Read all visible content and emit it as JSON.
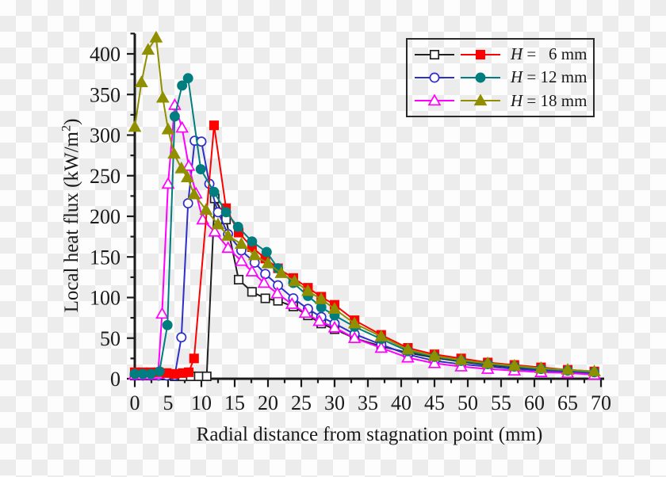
{
  "chart_data": {
    "type": "line",
    "title": "",
    "xlabel": "Radial distance from stagnation point (mm)",
    "ylabel": "Local heat flux (kW/m²)",
    "ylabel_parts": {
      "pre": "Local heat flux (kW/m",
      "sup": "2",
      "post": ")"
    },
    "xlim": [
      0,
      70
    ],
    "ylim": [
      0,
      425
    ],
    "x_major_ticks": [
      0,
      5,
      10,
      15,
      20,
      25,
      30,
      35,
      40,
      45,
      50,
      55,
      60,
      65,
      70
    ],
    "y_major_ticks": [
      0,
      50,
      100,
      150,
      200,
      250,
      300,
      350,
      400
    ],
    "x_minor_ticks": [
      2.5,
      7.5,
      12.5,
      17.5,
      22.5,
      27.5,
      32.5,
      37.5,
      42.5,
      47.5,
      52.5,
      57.5,
      62.5,
      67.5
    ],
    "y_minor_ticks": [
      25,
      75,
      125,
      175,
      225,
      275,
      325,
      375,
      425
    ],
    "grid": false,
    "legend_position": "top-right",
    "legend_rows": [
      {
        "h": "H",
        "rest": " =   6 mm"
      },
      {
        "h": "H",
        "rest": " = 12 mm"
      },
      {
        "h": "H",
        "rest": " = 18 mm"
      }
    ],
    "series": [
      {
        "name": "H6_open",
        "legend": "H = 6 mm (open)",
        "color": "#1f1f1f",
        "marker": "square",
        "fill": "open",
        "points": [
          [
            0,
            4
          ],
          [
            1.2,
            4
          ],
          [
            2.4,
            4
          ],
          [
            3.6,
            4
          ],
          [
            4.8,
            4
          ],
          [
            6,
            3
          ],
          [
            7.2,
            3
          ],
          [
            8.4,
            3
          ],
          [
            9.6,
            3
          ],
          [
            10.8,
            3
          ],
          [
            12,
            222
          ],
          [
            13.7,
            196
          ],
          [
            15.6,
            122
          ],
          [
            17.6,
            107
          ],
          [
            19.6,
            99
          ],
          [
            21.5,
            96
          ],
          [
            23.8,
            89
          ],
          [
            26,
            78
          ],
          [
            28,
            68
          ],
          [
            30,
            61
          ],
          [
            33,
            50
          ],
          [
            37,
            40
          ],
          [
            41,
            32
          ],
          [
            45,
            26
          ],
          [
            49,
            21
          ],
          [
            53,
            17
          ],
          [
            57,
            14
          ],
          [
            61,
            11
          ],
          [
            65,
            9
          ],
          [
            69,
            8
          ]
        ]
      },
      {
        "name": "H6_filled",
        "legend": "H = 6 mm (filled)",
        "color": "#fd0000",
        "marker": "square",
        "fill": "solid",
        "points": [
          [
            0,
            8
          ],
          [
            1.2,
            8
          ],
          [
            2.4,
            8
          ],
          [
            3.6,
            8
          ],
          [
            4.8,
            7
          ],
          [
            6,
            6
          ],
          [
            7.2,
            7
          ],
          [
            8.1,
            8
          ],
          [
            8.9,
            25
          ],
          [
            11.9,
            312
          ],
          [
            13.7,
            210
          ],
          [
            15.6,
            180
          ],
          [
            17.6,
            162
          ],
          [
            19.6,
            148
          ],
          [
            21.5,
            136
          ],
          [
            23.8,
            124
          ],
          [
            26,
            112
          ],
          [
            28,
            101
          ],
          [
            30,
            91
          ],
          [
            33,
            72
          ],
          [
            37,
            54
          ],
          [
            41,
            38
          ],
          [
            45,
            30
          ],
          [
            49,
            25
          ],
          [
            53,
            20
          ],
          [
            57,
            17
          ],
          [
            61,
            14
          ],
          [
            65,
            11
          ],
          [
            69,
            9
          ]
        ]
      },
      {
        "name": "H12_open",
        "legend": "H = 12 mm (open)",
        "color": "#2e2ec8",
        "marker": "circle",
        "fill": "open",
        "points": [
          [
            0,
            4
          ],
          [
            1.2,
            4
          ],
          [
            2.4,
            4
          ],
          [
            3.6,
            4
          ],
          [
            4.8,
            4
          ],
          [
            6,
            4
          ],
          [
            7,
            51
          ],
          [
            8,
            216
          ],
          [
            9,
            293
          ],
          [
            10,
            292
          ],
          [
            11.2,
            240
          ],
          [
            12.5,
            205
          ],
          [
            14,
            178
          ],
          [
            16,
            158
          ],
          [
            18,
            143
          ],
          [
            19.6,
            129
          ],
          [
            21.5,
            115
          ],
          [
            23.8,
            99
          ],
          [
            26,
            86
          ],
          [
            28,
            76
          ],
          [
            30,
            68
          ],
          [
            33,
            55
          ],
          [
            37,
            42
          ],
          [
            41,
            30
          ],
          [
            45,
            22
          ],
          [
            49,
            18
          ],
          [
            53,
            15
          ],
          [
            57,
            12
          ],
          [
            61,
            10
          ],
          [
            65,
            8
          ],
          [
            69,
            6
          ]
        ]
      },
      {
        "name": "H12_filled",
        "legend": "H = 12 mm (filled)",
        "color": "#007d7e",
        "marker": "circle",
        "fill": "solid",
        "points": [
          [
            0,
            6
          ],
          [
            1.2,
            6
          ],
          [
            2.4,
            6
          ],
          [
            3.7,
            9
          ],
          [
            4.9,
            66
          ],
          [
            6,
            323
          ],
          [
            7.1,
            361
          ],
          [
            8,
            370
          ],
          [
            9.9,
            258
          ],
          [
            11.9,
            230
          ],
          [
            13.7,
            205
          ],
          [
            15.5,
            187
          ],
          [
            17.6,
            169
          ],
          [
            19.8,
            156
          ],
          [
            21.5,
            136
          ],
          [
            23.8,
            118
          ],
          [
            26,
            102
          ],
          [
            28,
            88
          ],
          [
            30,
            78
          ],
          [
            33,
            64
          ],
          [
            37,
            49
          ],
          [
            41,
            34
          ],
          [
            45,
            27
          ],
          [
            49,
            22
          ],
          [
            53,
            18
          ],
          [
            57,
            15
          ],
          [
            61,
            12
          ],
          [
            65,
            10
          ],
          [
            69,
            8
          ]
        ]
      },
      {
        "name": "H18_open",
        "legend": "H = 18 mm (open)",
        "color": "#ff00ff",
        "marker": "triangle",
        "fill": "open",
        "points": [
          [
            0,
            5
          ],
          [
            1.2,
            5
          ],
          [
            2.4,
            5
          ],
          [
            3.5,
            6
          ],
          [
            4.1,
            80
          ],
          [
            5,
            240
          ],
          [
            6,
            337
          ],
          [
            7.1,
            309
          ],
          [
            8.1,
            262
          ],
          [
            9.2,
            228
          ],
          [
            10.2,
            196
          ],
          [
            12,
            181
          ],
          [
            14,
            161
          ],
          [
            16,
            145
          ],
          [
            17.6,
            132
          ],
          [
            19.4,
            118
          ],
          [
            21.4,
            105
          ],
          [
            23.6,
            92
          ],
          [
            25.6,
            81
          ],
          [
            27.7,
            71
          ],
          [
            30,
            63
          ],
          [
            33,
            50
          ],
          [
            37,
            38
          ],
          [
            41,
            26
          ],
          [
            45,
            19
          ],
          [
            49,
            15
          ],
          [
            53,
            12
          ],
          [
            57,
            10
          ],
          [
            61,
            8
          ],
          [
            65,
            7
          ],
          [
            69,
            5
          ]
        ]
      },
      {
        "name": "H18_filled",
        "legend": "H = 18 mm (filled)",
        "color": "#8f8f00",
        "marker": "triangle",
        "fill": "solid",
        "points": [
          [
            0,
            310
          ],
          [
            1,
            365
          ],
          [
            2,
            405
          ],
          [
            3.2,
            420
          ],
          [
            4.2,
            346
          ],
          [
            5,
            307
          ],
          [
            5.9,
            277
          ],
          [
            7,
            259
          ],
          [
            7.9,
            248
          ],
          [
            8.9,
            227
          ],
          [
            10.7,
            208
          ],
          [
            12.5,
            190
          ],
          [
            14,
            176
          ],
          [
            16,
            166
          ],
          [
            18,
            152
          ],
          [
            20,
            142
          ],
          [
            22,
            130
          ],
          [
            24,
            120
          ],
          [
            26,
            108
          ],
          [
            28,
            98
          ],
          [
            30,
            86
          ],
          [
            33,
            68
          ],
          [
            37,
            52
          ],
          [
            41,
            36
          ],
          [
            45,
            28
          ],
          [
            49,
            23
          ],
          [
            53,
            19
          ],
          [
            57,
            16
          ],
          [
            61,
            13
          ],
          [
            65,
            11
          ],
          [
            69,
            9
          ]
        ]
      }
    ],
    "draw_order": [
      0,
      2,
      4,
      1,
      3,
      5
    ],
    "axis_color": "#1a1a1a",
    "background": {
      "checker_light": "#fdfdfd",
      "checker_dark": "#ececec",
      "checker_size_px": 20
    }
  }
}
